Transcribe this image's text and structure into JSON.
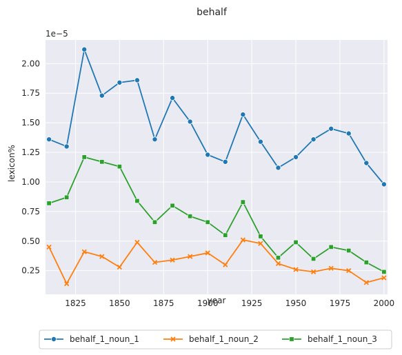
{
  "chart_data": {
    "type": "line",
    "title": "behalf",
    "xlabel": "year",
    "ylabel": "lexicon%",
    "y_offset_label": "1e−5",
    "xlim": [
      1808,
      2002
    ],
    "ylim": [
      0.05,
      2.2
    ],
    "x_ticks": [
      1825,
      1850,
      1875,
      1900,
      1925,
      1950,
      1975,
      2000
    ],
    "y_ticks": [
      0.25,
      0.5,
      0.75,
      1.0,
      1.25,
      1.5,
      1.75,
      2.0
    ],
    "y_tick_labels": [
      "0.25",
      "0.50",
      "0.75",
      "1.00",
      "1.25",
      "1.50",
      "1.75",
      "2.00"
    ],
    "grid": true,
    "legend_position": "bottom",
    "x": [
      1810,
      1820,
      1830,
      1840,
      1850,
      1860,
      1870,
      1880,
      1890,
      1900,
      1910,
      1920,
      1930,
      1940,
      1950,
      1960,
      1970,
      1980,
      1990,
      2000
    ],
    "series": [
      {
        "name": "behalf_1_noun_1",
        "color": "#1f77b4",
        "marker": "circle",
        "values": [
          1.36,
          1.3,
          2.12,
          1.73,
          1.84,
          1.86,
          1.36,
          1.71,
          1.51,
          1.23,
          1.17,
          1.57,
          1.34,
          1.12,
          1.21,
          1.36,
          1.45,
          1.41,
          1.16,
          0.98
        ]
      },
      {
        "name": "behalf_1_noun_2",
        "color": "#ff7f0e",
        "marker": "x",
        "values": [
          0.45,
          0.14,
          0.41,
          0.37,
          0.28,
          0.49,
          0.32,
          0.34,
          0.37,
          0.4,
          0.3,
          0.51,
          0.48,
          0.31,
          0.26,
          0.24,
          0.27,
          0.25,
          0.15,
          0.19
        ]
      },
      {
        "name": "behalf_1_noun_3",
        "color": "#2ca02c",
        "marker": "square",
        "values": [
          0.82,
          0.87,
          1.21,
          1.17,
          1.13,
          0.84,
          0.66,
          0.8,
          0.71,
          0.66,
          0.55,
          0.83,
          0.54,
          0.36,
          0.49,
          0.35,
          0.45,
          0.42,
          0.32,
          0.24
        ]
      }
    ]
  }
}
